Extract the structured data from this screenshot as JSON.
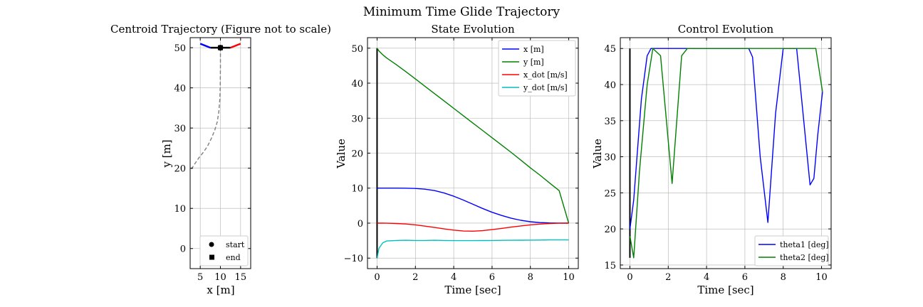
{
  "figure": {
    "suptitle": "Minimum Time Glide Trajectory"
  },
  "chart_data": [
    {
      "type": "line",
      "title": "Centroid Trajectory (Figure not to scale)",
      "xlabel": "x [m]",
      "ylabel": "y [m]",
      "xlim": [
        2.5,
        17.5
      ],
      "ylim": [
        -5,
        52.5
      ],
      "xticks": [
        5,
        10,
        15
      ],
      "yticks": [
        0,
        10,
        20,
        30,
        40,
        50
      ],
      "grid": true,
      "legend_position": "lower-right",
      "series": [
        {
          "key": "path",
          "color": "#808080",
          "dash": true,
          "x": [
            10,
            10,
            9.95,
            9.85,
            9.6,
            9.2,
            8.6,
            7.8,
            6.8,
            5.8,
            4.6,
            3.6,
            2.6
          ],
          "y": [
            50,
            45,
            40,
            37,
            34,
            31.5,
            29.5,
            27.5,
            25.5,
            24,
            22.5,
            21,
            19.5
          ]
        },
        {
          "key": "body",
          "color": "#000000",
          "width": 2.5,
          "x": [
            7.5,
            12.5
          ],
          "y": [
            50,
            50
          ]
        },
        {
          "key": "panel1",
          "color": "#0000ff",
          "width": 2.5,
          "x": [
            7.5,
            5
          ],
          "y": [
            50,
            51
          ]
        },
        {
          "key": "panel2",
          "color": "#ff0000",
          "width": 2.5,
          "x": [
            12.5,
            15
          ],
          "y": [
            50,
            51
          ]
        }
      ],
      "markers": [
        {
          "name": "start",
          "shape": "circle",
          "x": 10,
          "y": 50
        },
        {
          "name": "end",
          "shape": "square",
          "x": 10,
          "y": 50
        }
      ],
      "legend": [
        "start",
        "end"
      ]
    },
    {
      "type": "line",
      "title": "State Evolution",
      "xlabel": "Time [sec]",
      "ylabel": "Value",
      "xlim": [
        -0.5,
        10.5
      ],
      "ylim": [
        -13,
        53
      ],
      "xticks": [
        0,
        2,
        4,
        6,
        8,
        10
      ],
      "yticks": [
        -10,
        0,
        10,
        20,
        30,
        40,
        50
      ],
      "grid": true,
      "legend_position": "upper-right",
      "x": [
        0,
        0.1,
        0.3,
        0.5,
        1,
        1.5,
        2,
        2.5,
        3,
        3.5,
        4,
        4.5,
        5,
        5.5,
        6,
        6.5,
        7,
        7.5,
        8,
        8.5,
        9,
        9.5,
        10
      ],
      "series": [
        {
          "name": "x [m]",
          "color": "#0000ff",
          "values": [
            10,
            10,
            10,
            10,
            10,
            9.98,
            9.9,
            9.7,
            9.3,
            8.6,
            7.7,
            6.6,
            5.4,
            4.2,
            3.1,
            2.2,
            1.4,
            0.8,
            0.4,
            0.15,
            0.05,
            0.01,
            0
          ]
        },
        {
          "name": "y [m]",
          "color": "#008000",
          "values": [
            50,
            49.2,
            48.1,
            47.2,
            45.3,
            43.3,
            41.2,
            39.1,
            37,
            34.9,
            32.8,
            30.7,
            28.6,
            26.5,
            24.4,
            22.3,
            20.2,
            18,
            15.8,
            13.7,
            11.5,
            9.3,
            0
          ]
        },
        {
          "name": "x_dot [m/s]",
          "color": "#ff0000",
          "values": [
            0,
            0,
            0,
            -0.02,
            -0.1,
            -0.25,
            -0.5,
            -0.85,
            -1.25,
            -1.65,
            -2.0,
            -2.25,
            -2.3,
            -2.15,
            -1.85,
            -1.5,
            -1.15,
            -0.8,
            -0.5,
            -0.27,
            -0.12,
            -0.03,
            0
          ]
        },
        {
          "name": "y_dot [m/s]",
          "color": "#00bfbf",
          "values": [
            -10,
            -7.2,
            -5.6,
            -5.1,
            -4.95,
            -4.9,
            -4.95,
            -4.95,
            -4.9,
            -4.95,
            -5.0,
            -5.0,
            -5.0,
            -4.98,
            -4.95,
            -4.92,
            -4.9,
            -4.88,
            -4.85,
            -4.83,
            -4.8,
            -4.8,
            -4.8
          ]
        }
      ],
      "vline": {
        "x": 0,
        "ymin": -10,
        "ymax": 50,
        "color": "#000000"
      }
    },
    {
      "type": "line",
      "title": "Control Evolution",
      "xlabel": "Time [sec]",
      "ylabel": "Value",
      "xlim": [
        -0.5,
        10.5
      ],
      "ylim": [
        14.5,
        46.5
      ],
      "xticks": [
        0,
        2,
        4,
        6,
        8,
        10
      ],
      "yticks": [
        15,
        20,
        25,
        30,
        35,
        40,
        45
      ],
      "grid": true,
      "legend_position": "lower-right",
      "series": [
        {
          "name": "theta1 [deg]",
          "color": "#0000ff",
          "x": [
            0,
            0.2,
            0.6,
            0.9,
            1.1,
            2,
            4,
            6.2,
            6.4,
            6.8,
            7.2,
            7.6,
            8,
            8.3,
            8.7,
            9.4,
            9.6,
            9.8,
            10.05
          ],
          "y": [
            20,
            24,
            38,
            44,
            45,
            45,
            45,
            45,
            43.8,
            30,
            20.9,
            36,
            45,
            45,
            45,
            26.1,
            27,
            33,
            39
          ]
        },
        {
          "name": "theta2 [deg]",
          "color": "#008000",
          "x": [
            0,
            0.2,
            0.5,
            0.9,
            1.2,
            1.6,
            2.2,
            2.7,
            3,
            5,
            8,
            9.2,
            9.7,
            10.05
          ],
          "y": [
            19,
            16,
            28,
            40,
            45,
            44,
            26.3,
            44,
            45,
            45,
            45,
            45,
            45,
            39
          ]
        }
      ],
      "vline": {
        "x": 0,
        "ymin": 16,
        "ymax": 45,
        "color": "#000000"
      }
    }
  ]
}
